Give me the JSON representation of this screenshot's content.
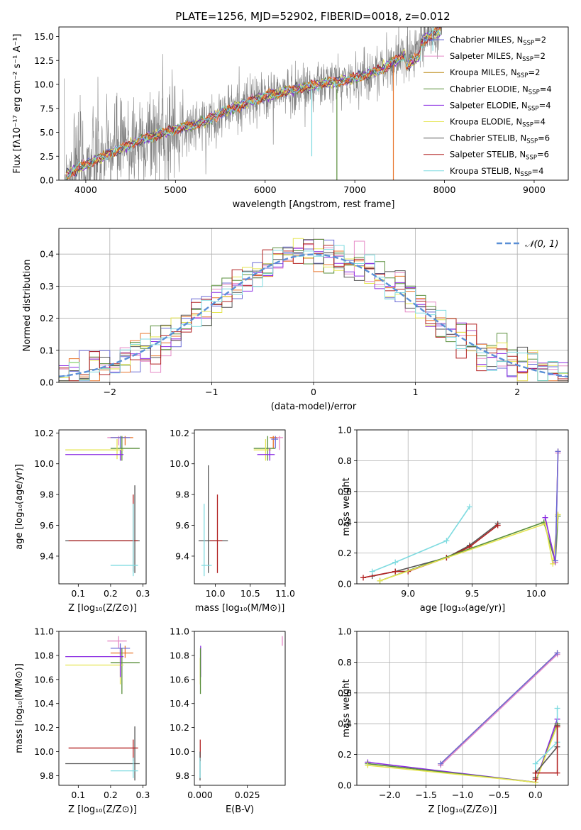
{
  "title": "PLATE=1256, MJD=52902, FIBERID=0018, z=0.012",
  "colors": {
    "chabrier_miles": "#6b6bd6",
    "salpeter_miles": "#e589c6",
    "kroupa_miles": "#b8860b",
    "chabrier_elodie": "#5a8f3c",
    "salpeter_elodie": "#8a2be2",
    "kroupa_elodie": "#e5e552",
    "chabrier_stelib": "#555555",
    "salpeter_stelib": "#b22222",
    "kroupa_stelib": "#7fdbe0",
    "orange_extra": "#e8742a",
    "gauss": "#5a8fd6"
  },
  "chart_data": [
    {
      "id": "spectrum",
      "type": "line",
      "xlabel": "wavelength [Angstrom, rest frame]",
      "ylabel": "Flux [fλ10⁻¹⁷ erg cm⁻² s⁻¹ A⁻¹]",
      "xlim": [
        3700,
        9380
      ],
      "ylim": [
        0,
        16
      ],
      "xticks": [
        "4000",
        "5000",
        "6000",
        "7000",
        "8000",
        "9000"
      ],
      "yticks": [
        "0.0",
        "2.5",
        "5.0",
        "7.5",
        "10.0",
        "12.5",
        "15.0"
      ],
      "legend": [
        "Chabrier MILES, N_SSP=2",
        "Salpeter MILES, N_SSP=2",
        "Kroupa MILES, N_SSP=2",
        "Chabrier ELODIE, N_SSP=4",
        "Salpeter ELODIE, N_SSP=4",
        "Kroupa ELODIE, N_SSP=4",
        "Chabrier STELIB, N_SSP=6",
        "Salpeter STELIB, N_SSP=6",
        "Kroupa STELIB, N_SSP=4"
      ],
      "continuum": {
        "x": [
          3760,
          4000,
          4300,
          4600,
          5000,
          5300,
          5600,
          6000,
          6300,
          6600,
          7000,
          7300,
          7600,
          7800,
          7950
        ],
        "y": [
          0.5,
          1.6,
          2.9,
          4.2,
          5.3,
          6.0,
          7.4,
          8.8,
          9.4,
          10.0,
          10.6,
          11.6,
          13.3,
          14.8,
          15.6
        ]
      }
    },
    {
      "id": "residuals",
      "type": "histogram",
      "xlabel": "(data-model)/error",
      "ylabel": "Normed distribution",
      "xlim": [
        -2.5,
        2.5
      ],
      "ylim": [
        0,
        0.48
      ],
      "xticks": [
        "−2",
        "−1",
        "0",
        "1",
        "2"
      ],
      "yticks": [
        "0.0",
        "0.1",
        "0.2",
        "0.3",
        "0.4"
      ],
      "legend": [
        "N(0,1)"
      ],
      "bin_width": 0.1
    },
    {
      "id": "age-vs-Z",
      "type": "errorbar",
      "xlabel": "Z [log₁₀(Z/Z⊙)]",
      "ylabel": "age  [log₁₀(age/yr)]",
      "xlim": [
        0.04,
        0.31
      ],
      "ylim": [
        9.22,
        10.22
      ],
      "xticks": [
        "0.1",
        "0.2",
        "0.3"
      ],
      "yticks": [
        "9.4",
        "9.6",
        "9.8",
        "10.0",
        "10.2"
      ],
      "points": [
        {
          "s": "salpeter_miles",
          "x": 0.225,
          "y": 10.17,
          "xerr": [
            0.19,
            0.25
          ],
          "yerr": [
            10.12,
            10.18
          ]
        },
        {
          "s": "orange_extra",
          "x": 0.245,
          "y": 10.17,
          "xerr": [
            0.2,
            0.27
          ],
          "yerr": [
            10.12,
            10.18
          ]
        },
        {
          "s": "chabrier_miles",
          "x": 0.23,
          "y": 10.17,
          "xerr": [
            0.2,
            0.26
          ],
          "yerr": [
            10.1,
            10.18
          ]
        },
        {
          "s": "chabrier_elodie",
          "x": 0.235,
          "y": 10.1,
          "xerr": [
            0.2,
            0.29
          ],
          "yerr": [
            10.02,
            10.18
          ]
        },
        {
          "s": "kroupa_elodie",
          "x": 0.22,
          "y": 10.09,
          "xerr": [
            0.06,
            0.24
          ],
          "yerr": [
            10.03,
            10.16
          ]
        },
        {
          "s": "salpeter_elodie",
          "x": 0.23,
          "y": 10.06,
          "xerr": [
            0.06,
            0.24
          ],
          "yerr": [
            10.02,
            10.09
          ]
        },
        {
          "s": "chabrier_stelib",
          "x": 0.275,
          "y": 9.5,
          "xerr": [
            0.06,
            0.29
          ],
          "yerr": [
            9.29,
            9.86
          ]
        },
        {
          "s": "salpeter_stelib",
          "x": 0.27,
          "y": 9.5,
          "xerr": [
            0.07,
            0.285
          ],
          "yerr": [
            9.3,
            9.8
          ]
        },
        {
          "s": "kroupa_stelib",
          "x": 0.27,
          "y": 9.34,
          "xerr": [
            0.2,
            0.285
          ],
          "yerr": [
            9.27,
            9.74
          ]
        }
      ]
    },
    {
      "id": "age-vs-mass",
      "type": "errorbar",
      "xlabel": "mass [log₁₀(M/M⊙)]",
      "ylabel": "",
      "xlim": [
        9.7,
        11.0
      ],
      "ylim": [
        9.22,
        10.22
      ],
      "xticks": [
        "10.0",
        "10.5",
        "11.0"
      ],
      "yticks": [
        "9.4",
        "9.6",
        "9.8",
        "10.0",
        "10.2"
      ],
      "points": [
        {
          "s": "salpeter_miles",
          "x": 10.92,
          "y": 10.17,
          "xerr": [
            10.86,
            10.97
          ],
          "yerr": [
            10.09,
            10.18
          ]
        },
        {
          "s": "orange_extra",
          "x": 10.83,
          "y": 10.17,
          "xerr": [
            10.78,
            10.88
          ],
          "yerr": [
            10.1,
            10.18
          ]
        },
        {
          "s": "chabrier_miles",
          "x": 10.86,
          "y": 10.16,
          "xerr": [
            10.8,
            10.9
          ],
          "yerr": [
            10.1,
            10.18
          ]
        },
        {
          "s": "chabrier_elodie",
          "x": 10.75,
          "y": 10.1,
          "xerr": [
            10.55,
            10.86
          ],
          "yerr": [
            10.02,
            10.18
          ]
        },
        {
          "s": "kroupa_elodie",
          "x": 10.72,
          "y": 10.09,
          "xerr": [
            10.55,
            10.8
          ],
          "yerr": [
            10.02,
            10.16
          ]
        },
        {
          "s": "salpeter_elodie",
          "x": 10.78,
          "y": 10.06,
          "xerr": [
            10.6,
            10.85
          ],
          "yerr": [
            10.02,
            10.1
          ]
        },
        {
          "s": "chabrier_stelib",
          "x": 9.9,
          "y": 9.5,
          "xerr": [
            9.76,
            10.18
          ],
          "yerr": [
            9.29,
            9.99
          ]
        },
        {
          "s": "salpeter_stelib",
          "x": 10.03,
          "y": 9.5,
          "xerr": [
            9.92,
            10.1
          ],
          "yerr": [
            9.29,
            9.8
          ]
        },
        {
          "s": "kroupa_stelib",
          "x": 9.84,
          "y": 9.34,
          "xerr": [
            9.8,
            9.95
          ],
          "yerr": [
            9.27,
            9.74
          ]
        }
      ]
    },
    {
      "id": "weight-vs-age",
      "type": "line",
      "xlabel": "age  [log₁₀(age/yr)]",
      "ylabel": "mass weight",
      "xlim": [
        8.6,
        10.25
      ],
      "ylim": [
        0,
        1.0
      ],
      "xticks": [
        "9.0",
        "9.5",
        "10.0"
      ],
      "yticks": [
        "0.0",
        "0.2",
        "0.4",
        "0.6",
        "0.8",
        "1.0"
      ],
      "series": [
        {
          "s": "chabrier_stelib",
          "x": [
            8.72,
            8.9,
            9.3,
            9.48,
            9.7
          ],
          "y": [
            0.05,
            0.08,
            0.17,
            0.25,
            0.39
          ]
        },
        {
          "s": "salpeter_stelib",
          "x": [
            8.65,
            8.9,
            9.0,
            9.3,
            9.48,
            9.7
          ],
          "y": [
            0.04,
            0.08,
            0.08,
            0.17,
            0.24,
            0.38
          ]
        },
        {
          "s": "kroupa_stelib",
          "x": [
            8.72,
            8.9,
            9.3,
            9.48
          ],
          "y": [
            0.08,
            0.14,
            0.28,
            0.5
          ]
        },
        {
          "s": "chabrier_elodie",
          "x": [
            8.78,
            10.06,
            10.15,
            10.17
          ],
          "y": [
            0.02,
            0.4,
            0.14,
            0.44
          ]
        },
        {
          "s": "kroupa_elodie",
          "x": [
            8.78,
            10.07,
            10.13,
            10.17
          ],
          "y": [
            0.02,
            0.39,
            0.13,
            0.45
          ]
        },
        {
          "s": "salpeter_elodie",
          "x": [
            10.07,
            10.15
          ],
          "y": [
            0.43,
            0.14
          ]
        },
        {
          "s": "orange_extra",
          "x": [
            10.15,
            10.17
          ],
          "y": [
            0.14,
            0.86
          ]
        },
        {
          "s": "salpeter_miles",
          "x": [
            10.15,
            10.17
          ],
          "y": [
            0.14,
            0.85
          ]
        },
        {
          "s": "chabrier_miles",
          "x": [
            10.15,
            10.17
          ],
          "y": [
            0.15,
            0.86
          ]
        }
      ]
    },
    {
      "id": "mass-vs-Z",
      "type": "errorbar",
      "xlabel": "Z [log₁₀(Z/Z⊙)]",
      "ylabel": "mass [log₁₀(M/M⊙)]",
      "xlim": [
        0.04,
        0.31
      ],
      "ylim": [
        9.72,
        11.0
      ],
      "xticks": [
        "0.1",
        "0.2",
        "0.3"
      ],
      "yticks": [
        "9.8",
        "10.0",
        "10.2",
        "10.4",
        "10.6",
        "10.8",
        "11.0"
      ],
      "points": [
        {
          "s": "salpeter_miles",
          "x": 0.225,
          "y": 10.92,
          "xerr": [
            0.19,
            0.25
          ],
          "yerr": [
            10.86,
            10.96
          ]
        },
        {
          "s": "orange_extra",
          "x": 0.245,
          "y": 10.82,
          "xerr": [
            0.2,
            0.27
          ],
          "yerr": [
            10.78,
            10.88
          ]
        },
        {
          "s": "chabrier_miles",
          "x": 0.23,
          "y": 10.86,
          "xerr": [
            0.2,
            0.26
          ],
          "yerr": [
            10.8,
            10.9
          ]
        },
        {
          "s": "chabrier_elodie",
          "x": 0.235,
          "y": 10.74,
          "xerr": [
            0.2,
            0.29
          ],
          "yerr": [
            10.48,
            10.86
          ]
        },
        {
          "s": "kroupa_elodie",
          "x": 0.23,
          "y": 10.72,
          "xerr": [
            0.06,
            0.24
          ],
          "yerr": [
            10.56,
            10.78
          ]
        },
        {
          "s": "salpeter_elodie",
          "x": 0.23,
          "y": 10.79,
          "xerr": [
            0.06,
            0.24
          ],
          "yerr": [
            10.62,
            10.86
          ]
        },
        {
          "s": "chabrier_stelib",
          "x": 0.275,
          "y": 9.9,
          "xerr": [
            0.06,
            0.29
          ],
          "yerr": [
            9.76,
            10.21
          ]
        },
        {
          "s": "salpeter_stelib",
          "x": 0.27,
          "y": 10.03,
          "xerr": [
            0.07,
            0.285
          ],
          "yerr": [
            9.92,
            10.1
          ]
        },
        {
          "s": "kroupa_stelib",
          "x": 0.27,
          "y": 9.84,
          "xerr": [
            0.2,
            0.285
          ],
          "yerr": [
            9.78,
            9.95
          ]
        }
      ]
    },
    {
      "id": "mass-vs-ebv",
      "type": "errorbar",
      "xlabel": "E(B-V)",
      "ylabel": "",
      "xlim": [
        -0.003,
        0.045
      ],
      "ylim": [
        9.72,
        11.0
      ],
      "xticks": [
        "0.000",
        "0.025"
      ],
      "yticks": [
        "9.8",
        "10.0",
        "10.2",
        "10.4",
        "10.6",
        "10.8",
        "11.0"
      ],
      "points": [
        {
          "s": "salpeter_miles",
          "x": 0.0435,
          "y": 10.92,
          "xerr": [
            0.0435,
            0.0435
          ],
          "yerr": [
            10.88,
            10.96
          ]
        },
        {
          "s": "salpeter_elodie",
          "x": 0.0003,
          "y": 10.79,
          "xerr": [
            0.0003,
            0.0003
          ],
          "yerr": [
            10.62,
            10.88
          ]
        },
        {
          "s": "kroupa_elodie",
          "x": 0.0001,
          "y": 10.72,
          "xerr": [
            0.0001,
            0.0001
          ],
          "yerr": [
            10.56,
            10.78
          ]
        },
        {
          "s": "chabrier_elodie",
          "x": 0.0002,
          "y": 10.74,
          "xerr": [
            0.0002,
            0.0002
          ],
          "yerr": [
            10.48,
            10.86
          ]
        },
        {
          "s": "salpeter_stelib",
          "x": 0.0001,
          "y": 10.03,
          "xerr": [
            0.0001,
            0.0001
          ],
          "yerr": [
            9.92,
            10.1
          ]
        },
        {
          "s": "chabrier_stelib",
          "x": 0.0,
          "y": 9.9,
          "xerr": [
            0.0,
            0.0
          ],
          "yerr": [
            9.76,
            10.0
          ]
        },
        {
          "s": "kroupa_stelib",
          "x": 0.0,
          "y": 9.84,
          "xerr": [
            0.0,
            0.0
          ],
          "yerr": [
            9.78,
            9.95
          ]
        }
      ]
    },
    {
      "id": "weight-vs-Z",
      "type": "line",
      "xlabel": "Z [log₁₀(Z/Z⊙)]",
      "ylabel": "mass weight",
      "xlim": [
        -2.45,
        0.45
      ],
      "ylim": [
        0,
        1.0
      ],
      "xticks": [
        "−2.0",
        "−1.5",
        "−1.0",
        "−0.5",
        "0.0"
      ],
      "yticks": [
        "0.0",
        "0.2",
        "0.4",
        "0.6",
        "0.8",
        "1.0"
      ],
      "series": [
        {
          "s": "orange_extra",
          "x": [
            -1.3,
            0.3
          ],
          "y": [
            0.14,
            0.86
          ]
        },
        {
          "s": "salpeter_miles",
          "x": [
            -1.3,
            0.3
          ],
          "y": [
            0.13,
            0.85
          ]
        },
        {
          "s": "chabrier_miles",
          "x": [
            -1.3,
            0.3
          ],
          "y": [
            0.14,
            0.86
          ]
        },
        {
          "s": "salpeter_elodie",
          "x": [
            -2.3,
            0.0,
            0.3
          ],
          "y": [
            0.15,
            0.02,
            0.43
          ]
        },
        {
          "s": "chabrier_elodie",
          "x": [
            -2.3,
            0.0,
            0.3
          ],
          "y": [
            0.14,
            0.02,
            0.4
          ]
        },
        {
          "s": "kroupa_elodie",
          "x": [
            -2.3,
            0.0,
            0.3
          ],
          "y": [
            0.13,
            0.02,
            0.39
          ]
        },
        {
          "s": "kroupa_stelib",
          "x": [
            0.0,
            0.0,
            0.3,
            0.3
          ],
          "y": [
            0.08,
            0.14,
            0.28,
            0.5
          ]
        },
        {
          "s": "chabrier_stelib",
          "x": [
            0.0,
            0.0,
            0.3,
            0.3
          ],
          "y": [
            0.05,
            0.08,
            0.25,
            0.39
          ]
        },
        {
          "s": "salpeter_stelib",
          "x": [
            0.0,
            0.0,
            0.3,
            0.3
          ],
          "y": [
            0.04,
            0.08,
            0.08,
            0.38
          ]
        }
      ]
    }
  ]
}
